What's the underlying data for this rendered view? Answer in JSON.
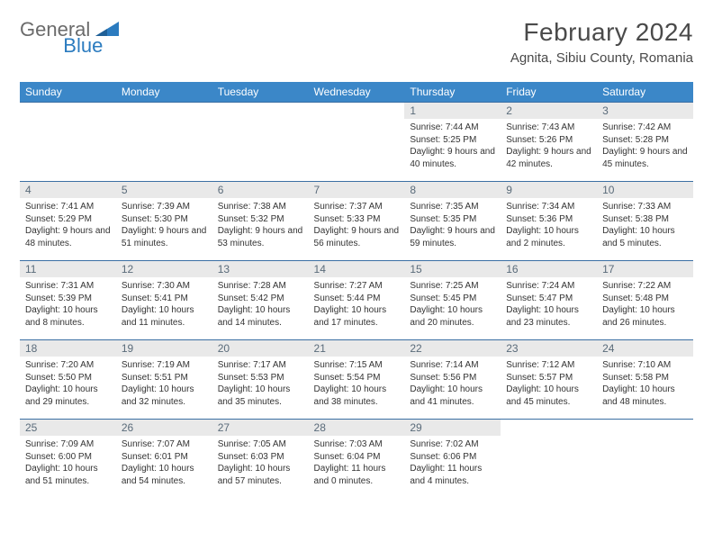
{
  "logo": {
    "part1": "General",
    "part2": "Blue"
  },
  "title": "February 2024",
  "location": "Agnita, Sibiu County, Romania",
  "colors": {
    "header_bg": "#3b87c8",
    "header_text": "#ffffff",
    "daynum_bg": "#e9e9e9",
    "daynum_text": "#5a6b7a",
    "rule": "#3b6fa3",
    "logo_gray": "#6b6b6b",
    "logo_blue": "#2b7bbf"
  },
  "weekdays": [
    "Sunday",
    "Monday",
    "Tuesday",
    "Wednesday",
    "Thursday",
    "Friday",
    "Saturday"
  ],
  "weeks": [
    [
      null,
      null,
      null,
      null,
      {
        "d": "1",
        "sr": "7:44 AM",
        "ss": "5:25 PM",
        "dl": "9 hours and 40 minutes."
      },
      {
        "d": "2",
        "sr": "7:43 AM",
        "ss": "5:26 PM",
        "dl": "9 hours and 42 minutes."
      },
      {
        "d": "3",
        "sr": "7:42 AM",
        "ss": "5:28 PM",
        "dl": "9 hours and 45 minutes."
      }
    ],
    [
      {
        "d": "4",
        "sr": "7:41 AM",
        "ss": "5:29 PM",
        "dl": "9 hours and 48 minutes."
      },
      {
        "d": "5",
        "sr": "7:39 AM",
        "ss": "5:30 PM",
        "dl": "9 hours and 51 minutes."
      },
      {
        "d": "6",
        "sr": "7:38 AM",
        "ss": "5:32 PM",
        "dl": "9 hours and 53 minutes."
      },
      {
        "d": "7",
        "sr": "7:37 AM",
        "ss": "5:33 PM",
        "dl": "9 hours and 56 minutes."
      },
      {
        "d": "8",
        "sr": "7:35 AM",
        "ss": "5:35 PM",
        "dl": "9 hours and 59 minutes."
      },
      {
        "d": "9",
        "sr": "7:34 AM",
        "ss": "5:36 PM",
        "dl": "10 hours and 2 minutes."
      },
      {
        "d": "10",
        "sr": "7:33 AM",
        "ss": "5:38 PM",
        "dl": "10 hours and 5 minutes."
      }
    ],
    [
      {
        "d": "11",
        "sr": "7:31 AM",
        "ss": "5:39 PM",
        "dl": "10 hours and 8 minutes."
      },
      {
        "d": "12",
        "sr": "7:30 AM",
        "ss": "5:41 PM",
        "dl": "10 hours and 11 minutes."
      },
      {
        "d": "13",
        "sr": "7:28 AM",
        "ss": "5:42 PM",
        "dl": "10 hours and 14 minutes."
      },
      {
        "d": "14",
        "sr": "7:27 AM",
        "ss": "5:44 PM",
        "dl": "10 hours and 17 minutes."
      },
      {
        "d": "15",
        "sr": "7:25 AM",
        "ss": "5:45 PM",
        "dl": "10 hours and 20 minutes."
      },
      {
        "d": "16",
        "sr": "7:24 AM",
        "ss": "5:47 PM",
        "dl": "10 hours and 23 minutes."
      },
      {
        "d": "17",
        "sr": "7:22 AM",
        "ss": "5:48 PM",
        "dl": "10 hours and 26 minutes."
      }
    ],
    [
      {
        "d": "18",
        "sr": "7:20 AM",
        "ss": "5:50 PM",
        "dl": "10 hours and 29 minutes."
      },
      {
        "d": "19",
        "sr": "7:19 AM",
        "ss": "5:51 PM",
        "dl": "10 hours and 32 minutes."
      },
      {
        "d": "20",
        "sr": "7:17 AM",
        "ss": "5:53 PM",
        "dl": "10 hours and 35 minutes."
      },
      {
        "d": "21",
        "sr": "7:15 AM",
        "ss": "5:54 PM",
        "dl": "10 hours and 38 minutes."
      },
      {
        "d": "22",
        "sr": "7:14 AM",
        "ss": "5:56 PM",
        "dl": "10 hours and 41 minutes."
      },
      {
        "d": "23",
        "sr": "7:12 AM",
        "ss": "5:57 PM",
        "dl": "10 hours and 45 minutes."
      },
      {
        "d": "24",
        "sr": "7:10 AM",
        "ss": "5:58 PM",
        "dl": "10 hours and 48 minutes."
      }
    ],
    [
      {
        "d": "25",
        "sr": "7:09 AM",
        "ss": "6:00 PM",
        "dl": "10 hours and 51 minutes."
      },
      {
        "d": "26",
        "sr": "7:07 AM",
        "ss": "6:01 PM",
        "dl": "10 hours and 54 minutes."
      },
      {
        "d": "27",
        "sr": "7:05 AM",
        "ss": "6:03 PM",
        "dl": "10 hours and 57 minutes."
      },
      {
        "d": "28",
        "sr": "7:03 AM",
        "ss": "6:04 PM",
        "dl": "11 hours and 0 minutes."
      },
      {
        "d": "29",
        "sr": "7:02 AM",
        "ss": "6:06 PM",
        "dl": "11 hours and 4 minutes."
      },
      null,
      null
    ]
  ],
  "labels": {
    "sunrise": "Sunrise: ",
    "sunset": "Sunset: ",
    "daylight": "Daylight: "
  }
}
